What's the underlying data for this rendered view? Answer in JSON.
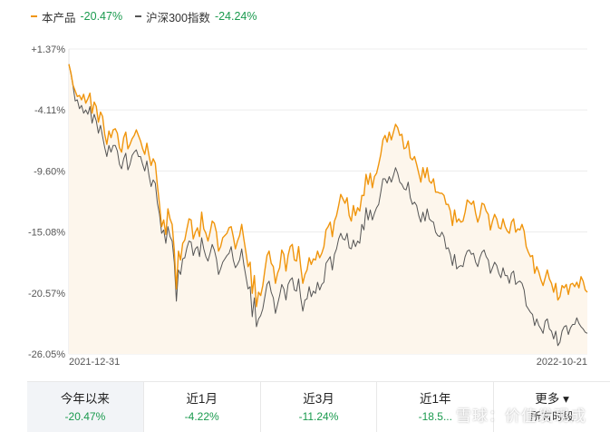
{
  "legend": [
    {
      "name": "本产品",
      "value": "-20.47%",
      "color": "#f0950c",
      "value_color": "#1a9a4e"
    },
    {
      "name": "沪深300指数",
      "value": "-24.24%",
      "color": "#555555",
      "value_color": "#1a9a4e"
    }
  ],
  "tabs": [
    {
      "label": "今年以来",
      "value": "-20.47%",
      "active": true
    },
    {
      "label": "近1月",
      "value": "-4.22%",
      "active": false
    },
    {
      "label": "近3月",
      "value": "-11.24%",
      "active": false
    },
    {
      "label": "近1年",
      "value": "-18.5...",
      "active": false
    },
    {
      "label": "更多 ▾",
      "value": "所有时段",
      "active": false
    }
  ],
  "watermark": "雪球：价值发现成",
  "colors": {
    "product": "#f0950c",
    "index": "#555555",
    "fill": "#fdf6ec",
    "positive": "#e23c3c",
    "negative": "#1a9a4e"
  },
  "chart_data": {
    "type": "line",
    "x_range": [
      "2021-12-31",
      "2022-10-21"
    ],
    "x_tick_labels": [
      "2021-12-31",
      "2022-10-21"
    ],
    "y_tick_labels": [
      "+1.37%",
      "-4.11%",
      "-9.60%",
      "-15.08%",
      "-20.57%",
      "-26.05%"
    ],
    "ylim": [
      -26.05,
      1.37
    ],
    "grid": "horizontal",
    "legend_position": "top-left",
    "x_start": "2021-12-31",
    "x_end": "2022-10-21",
    "series": [
      {
        "name": "本产品",
        "values": [
          0.0,
          -0.8,
          -1.9,
          -2.4,
          -2.9,
          -2.8,
          -3.2,
          -2.7,
          -3.5,
          -3.1,
          -2.6,
          -4.4,
          -3.4,
          -3.8,
          -5.2,
          -4.3,
          -4.7,
          -6.3,
          -7.2,
          -6.0,
          -6.6,
          -5.9,
          -5.8,
          -6.2,
          -7.5,
          -7.9,
          -6.6,
          -6.1,
          -7.6,
          -7.2,
          -6.7,
          -6.4,
          -5.9,
          -6.4,
          -6.9,
          -7.6,
          -8.1,
          -7.1,
          -8.2,
          -9.1,
          -8.5,
          -8.9,
          -10.9,
          -12.6,
          -14.6,
          -14.0,
          -15.3,
          -13.0,
          -13.9,
          -14.4,
          -16.7,
          -20.2,
          -16.8,
          -17.6,
          -16.1,
          -15.8,
          -14.8,
          -13.9,
          -14.0,
          -15.7,
          -15.1,
          -14.7,
          -15.5,
          -13.3,
          -14.8,
          -15.2,
          -15.9,
          -15.1,
          -14.1,
          -14.3,
          -15.1,
          -16.8,
          -16.4,
          -15.6,
          -15.4,
          -15.2,
          -14.7,
          -14.6,
          -15.5,
          -16.6,
          -15.9,
          -15.4,
          -14.4,
          -15.7,
          -16.9,
          -18.2,
          -17.8,
          -20.6,
          -19.0,
          -21.8,
          -20.5,
          -20.8,
          -19.9,
          -18.5,
          -17.2,
          -16.8,
          -17.9,
          -18.2,
          -19.7,
          -18.8,
          -18.3,
          -16.7,
          -17.1,
          -18.6,
          -17.2,
          -16.4,
          -16.2,
          -17.6,
          -17.7,
          -16.4,
          -18.2,
          -19.7,
          -18.9,
          -18.5,
          -17.4,
          -18.0,
          -17.5,
          -17.6,
          -16.8,
          -17.4,
          -17.0,
          -16.4,
          -14.9,
          -14.6,
          -14.2,
          -15.5,
          -14.1,
          -13.6,
          -12.7,
          -11.7,
          -12.1,
          -12.5,
          -12.0,
          -13.6,
          -14.1,
          -12.7,
          -13.6,
          -12.9,
          -13.2,
          -11.8,
          -11.8,
          -9.9,
          -10.8,
          -9.8,
          -11.1,
          -10.1,
          -9.8,
          -9.0,
          -8.1,
          -6.8,
          -6.4,
          -7.0,
          -6.1,
          -6.8,
          -6.1,
          -5.4,
          -5.7,
          -6.4,
          -6.3,
          -7.6,
          -7.5,
          -6.9,
          -8.4,
          -8.6,
          -8.3,
          -9.0,
          -9.8,
          -10.6,
          -9.3,
          -10.2,
          -9.3,
          -10.5,
          -10.7,
          -10.3,
          -11.5,
          -11.5,
          -11.6,
          -11.6,
          -11.8,
          -12.6,
          -12.6,
          -13.2,
          -14.5,
          -13.1,
          -14.2,
          -13.9,
          -14.2,
          -14.1,
          -13.3,
          -12.2,
          -12.4,
          -12.6,
          -12.3,
          -13.4,
          -14.2,
          -13.6,
          -12.5,
          -12.6,
          -13.2,
          -13.5,
          -14.9,
          -14.1,
          -13.5,
          -13.9,
          -14.7,
          -14.8,
          -13.9,
          -14.6,
          -15.0,
          -15.2,
          -14.2,
          -13.9,
          -15.1,
          -14.8,
          -14.9,
          -14.4,
          -15.0,
          -16.4,
          -16.9,
          -17.3,
          -17.2,
          -18.8,
          -18.2,
          -18.7,
          -19.4,
          -19.9,
          -19.2,
          -18.5,
          -19.3,
          -19.7,
          -20.5,
          -19.7,
          -21.2,
          -20.9,
          -19.9,
          -20.1,
          -19.8,
          -20.7,
          -19.8,
          -19.7,
          -20.0,
          -19.6,
          -20.1,
          -19.1,
          -19.5,
          -20.3,
          -20.5
        ]
      },
      {
        "name": "沪深300指数",
        "values": [
          0.0,
          -0.9,
          -2.0,
          -3.3,
          -3.2,
          -4.0,
          -3.7,
          -4.4,
          -4.1,
          -4.5,
          -3.8,
          -5.3,
          -4.5,
          -5.1,
          -6.2,
          -5.5,
          -6.5,
          -7.5,
          -8.3,
          -7.3,
          -7.9,
          -7.3,
          -7.3,
          -7.8,
          -9.0,
          -9.4,
          -8.5,
          -8.0,
          -9.5,
          -9.0,
          -8.2,
          -7.9,
          -7.7,
          -8.3,
          -8.3,
          -9.0,
          -9.6,
          -8.7,
          -10.0,
          -11.0,
          -10.4,
          -10.7,
          -12.5,
          -13.5,
          -15.2,
          -14.9,
          -16.1,
          -14.6,
          -15.5,
          -15.9,
          -17.8,
          -21.3,
          -18.5,
          -18.9,
          -17.5,
          -17.4,
          -16.5,
          -15.9,
          -16.0,
          -17.2,
          -16.6,
          -16.4,
          -17.3,
          -15.6,
          -16.6,
          -17.3,
          -17.7,
          -17.0,
          -16.2,
          -16.7,
          -17.5,
          -18.9,
          -18.4,
          -17.8,
          -17.5,
          -17.2,
          -17.0,
          -16.4,
          -17.6,
          -18.3,
          -18.0,
          -17.6,
          -16.6,
          -18.0,
          -19.1,
          -20.2,
          -20.0,
          -22.7,
          -21.0,
          -23.6,
          -22.9,
          -22.6,
          -22.0,
          -20.9,
          -19.8,
          -19.5,
          -20.5,
          -21.0,
          -22.4,
          -21.6,
          -20.8,
          -19.8,
          -20.2,
          -21.2,
          -19.8,
          -19.4,
          -19.2,
          -20.3,
          -20.4,
          -19.3,
          -21.0,
          -22.2,
          -21.2,
          -21.1,
          -20.0,
          -20.9,
          -20.4,
          -20.6,
          -19.6,
          -20.3,
          -19.8,
          -19.6,
          -17.9,
          -17.6,
          -17.3,
          -18.5,
          -17.1,
          -16.6,
          -15.7,
          -15.2,
          -15.7,
          -15.8,
          -15.2,
          -16.5,
          -16.6,
          -15.8,
          -16.4,
          -15.9,
          -16.1,
          -14.4,
          -14.9,
          -12.9,
          -14.0,
          -13.1,
          -14.0,
          -13.4,
          -12.9,
          -12.6,
          -11.5,
          -10.3,
          -10.3,
          -10.7,
          -10.1,
          -10.6,
          -10.0,
          -9.3,
          -9.8,
          -10.6,
          -10.8,
          -11.2,
          -11.3,
          -10.6,
          -12.0,
          -12.6,
          -12.4,
          -12.7,
          -13.6,
          -14.2,
          -13.3,
          -14.1,
          -13.0,
          -13.9,
          -14.1,
          -14.2,
          -15.1,
          -15.4,
          -15.5,
          -15.1,
          -15.5,
          -16.6,
          -16.5,
          -17.1,
          -18.1,
          -17.1,
          -18.4,
          -18.2,
          -18.1,
          -18.2,
          -17.3,
          -16.8,
          -16.7,
          -17.1,
          -17.0,
          -17.8,
          -18.2,
          -17.4,
          -16.9,
          -16.7,
          -17.3,
          -17.6,
          -18.8,
          -18.3,
          -17.8,
          -18.1,
          -18.8,
          -19.2,
          -18.3,
          -19.0,
          -19.0,
          -19.7,
          -18.8,
          -18.6,
          -19.8,
          -19.6,
          -19.5,
          -19.7,
          -20.3,
          -21.7,
          -22.0,
          -22.3,
          -22.5,
          -23.5,
          -22.9,
          -23.5,
          -23.8,
          -24.2,
          -23.1,
          -22.9,
          -23.8,
          -24.0,
          -24.7,
          -24.0,
          -25.3,
          -25.0,
          -24.0,
          -23.6,
          -23.5,
          -24.3,
          -23.7,
          -23.4,
          -23.4,
          -22.8,
          -23.3,
          -23.6,
          -23.8,
          -24.1,
          -24.2
        ]
      }
    ]
  }
}
